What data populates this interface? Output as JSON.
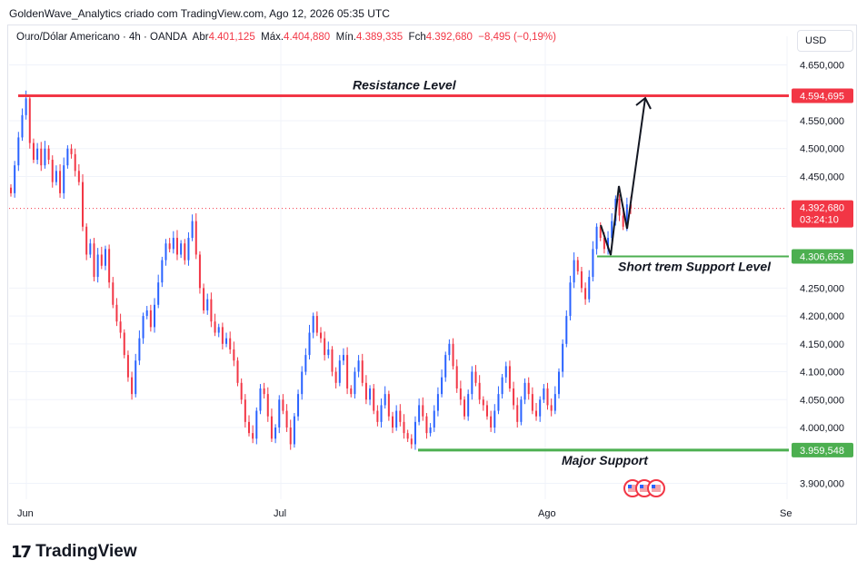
{
  "caption": "GoldenWave_Analytics criado com TradingView.com, Ago 12, 2026 05:35 UTC",
  "legend": {
    "symbol": "Ouro/Dólar Americano · 4h · OANDA",
    "open_label": "Abr",
    "open": "4.401,125",
    "high_label": "Máx.",
    "high": "4.404,880",
    "low_label": "Mín.",
    "low": "4.389,335",
    "close_label": "Fch",
    "close": "4.392,680",
    "change": "−8,495 (−0,19%)"
  },
  "currency": "USD",
  "brand": {
    "icon": "tradingview-logo-icon",
    "name": "TradingView"
  },
  "chart_data": {
    "type": "candlestick",
    "x_labels": [
      "Jun",
      "Jul",
      "Ago",
      "Se"
    ],
    "y_ticks": [
      "4.650,000",
      "4.550,000",
      "4.500,000",
      "4.450,000",
      "4.250,000",
      "4.200,000",
      "4.150,000",
      "4.100,000",
      "4.050,000",
      "4.000,000",
      "3.900,000"
    ],
    "y_tick_values": [
      4650,
      4550,
      4500,
      4450,
      4250,
      4200,
      4150,
      4100,
      4050,
      4000,
      3900
    ],
    "ylim": [
      3880,
      4680
    ],
    "levels": [
      {
        "name": "Resistance Level",
        "value": 4594.695,
        "label": "4.594,695",
        "color": "#f23645"
      },
      {
        "name": "Short trem Support Level",
        "value": 4306.653,
        "label": "4.306,653",
        "color": "#4caf50"
      },
      {
        "name": "Major Support",
        "value": 3959.548,
        "label": "3.959,548",
        "color": "#4caf50"
      }
    ],
    "current_price": {
      "value": 4392.68,
      "label": "4.392,680",
      "countdown": "03:24:10",
      "color": "#f23645"
    },
    "colors": {
      "up": "#2962ff",
      "down": "#f23645",
      "grid": "#f0f3fa"
    },
    "events": [
      "us-flag-icon",
      "us-flag-icon",
      "us-flag-icon"
    ],
    "closes": [
      4420,
      4470,
      4520,
      4560,
      4590,
      4510,
      4480,
      4500,
      4470,
      4500,
      4480,
      4440,
      4460,
      4420,
      4470,
      4500,
      4490,
      4460,
      4440,
      4360,
      4310,
      4330,
      4270,
      4310,
      4290,
      4320,
      4260,
      4220,
      4190,
      4170,
      4130,
      4090,
      4060,
      4120,
      4160,
      4200,
      4210,
      4180,
      4220,
      4260,
      4300,
      4330,
      4320,
      4340,
      4310,
      4330,
      4300,
      4340,
      4370,
      4310,
      4250,
      4210,
      4230,
      4190,
      4170,
      4180,
      4150,
      4160,
      4140,
      4120,
      4080,
      4050,
      4010,
      3990,
      3980,
      4030,
      4070,
      4060,
      4020,
      3980,
      4000,
      4050,
      4030,
      4000,
      3970,
      4020,
      4060,
      4100,
      4130,
      4170,
      4200,
      4170,
      4160,
      4130,
      4140,
      4100,
      4080,
      4120,
      4130,
      4070,
      4060,
      4100,
      4120,
      4080,
      4050,
      4070,
      4030,
      4010,
      4040,
      4060,
      4020,
      4000,
      4030,
      4010,
      3990,
      3980,
      3970,
      4010,
      4040,
      4020,
      3990,
      4000,
      4030,
      4060,
      4090,
      4130,
      4150,
      4110,
      4070,
      4050,
      4020,
      4060,
      4100,
      4080,
      4050,
      4040,
      4020,
      4000,
      4030,
      4060,
      4090,
      4110,
      4070,
      4040,
      4010,
      4050,
      4080,
      4060,
      4030,
      4020,
      4050,
      4070,
      4040,
      4030,
      4060,
      4100,
      4150,
      4200,
      4260,
      4300,
      4280,
      4250,
      4230,
      4270,
      4320,
      4360,
      4340,
      4320,
      4340,
      4370,
      4410,
      4380,
      4360,
      4400,
      4392.68
    ]
  }
}
